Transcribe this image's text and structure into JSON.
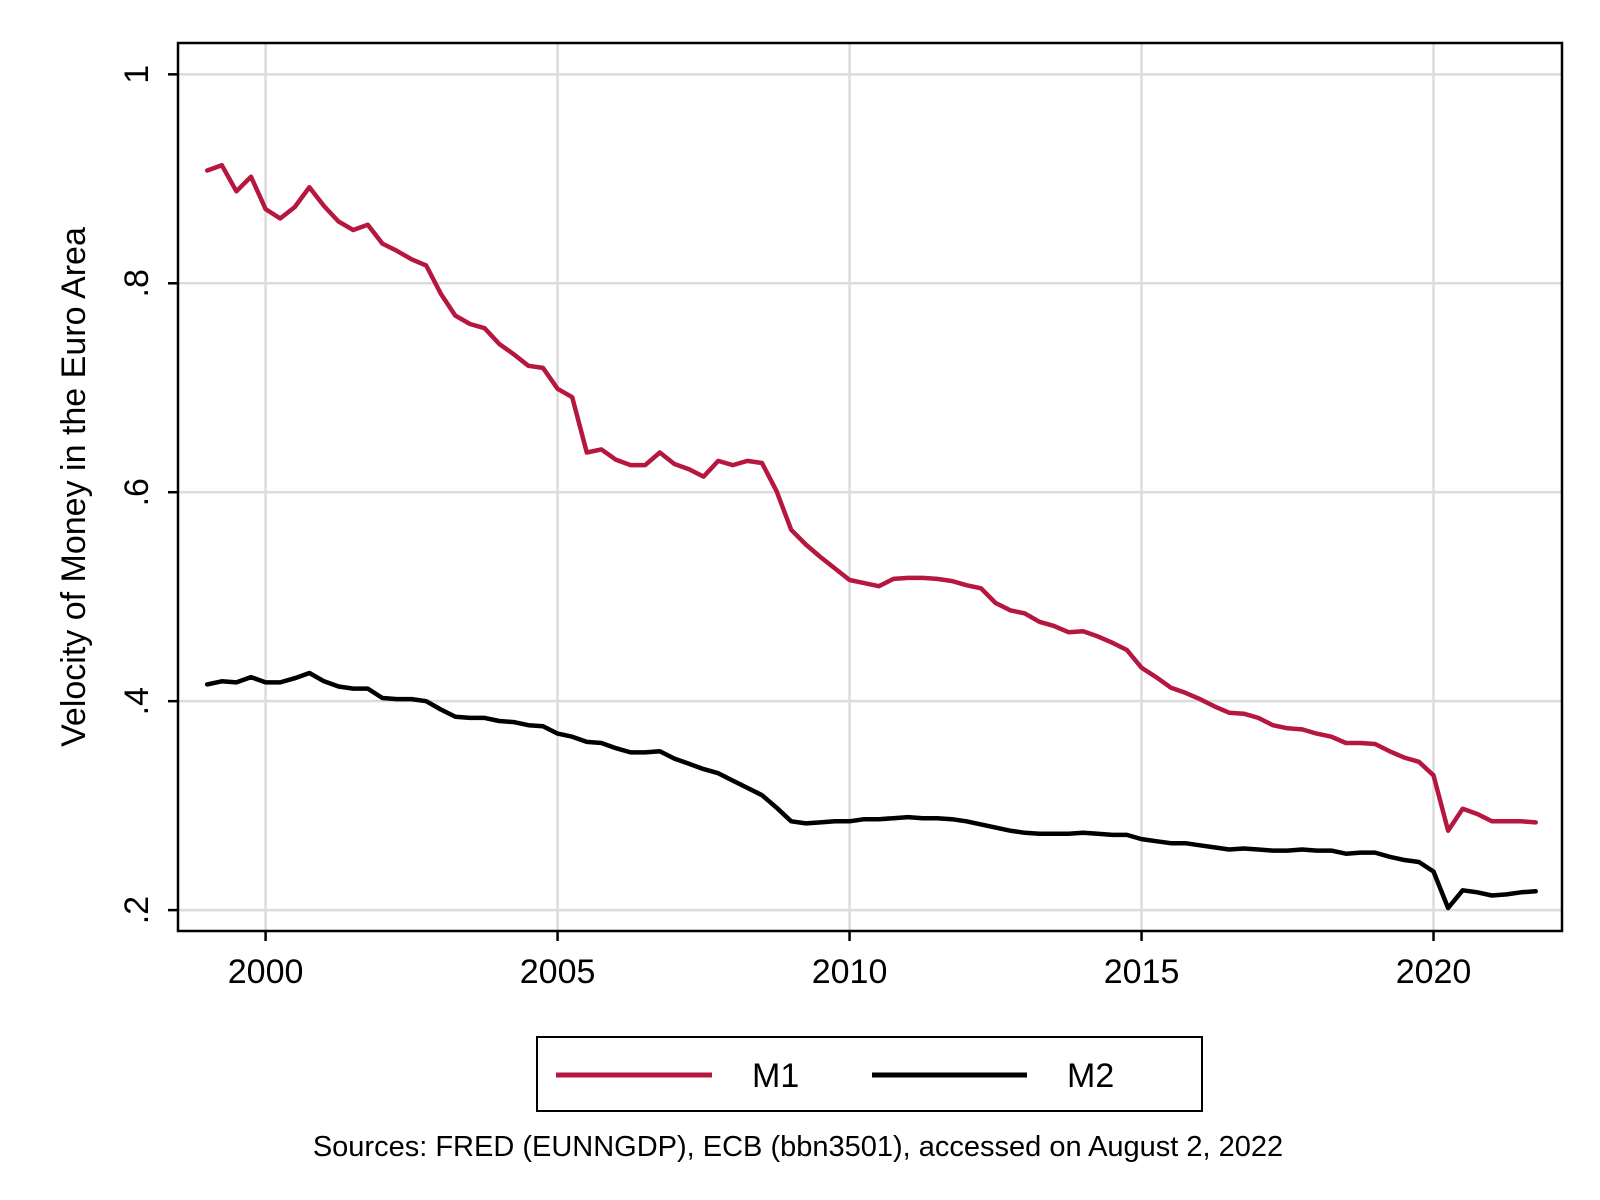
{
  "chart_data": {
    "type": "line",
    "title": "",
    "xlabel": "",
    "ylabel": "Velocity of Money in the Euro Area",
    "xlim": [
      1998.5,
      2022.2
    ],
    "ylim": [
      0.18,
      1.03
    ],
    "xticks": [
      {
        "value": 2000,
        "label": "2000"
      },
      {
        "value": 2005,
        "label": "2005"
      },
      {
        "value": 2010,
        "label": "2010"
      },
      {
        "value": 2015,
        "label": "2015"
      },
      {
        "value": 2020,
        "label": "2020"
      }
    ],
    "yticks": [
      {
        "value": 0.2,
        "label": ".2"
      },
      {
        "value": 0.4,
        "label": ".4"
      },
      {
        "value": 0.6,
        "label": ".6"
      },
      {
        "value": 0.8,
        "label": ".8"
      },
      {
        "value": 1.0,
        "label": "1"
      }
    ],
    "grid": true,
    "legend_position": "bottom",
    "note": "Sources: FRED (EUNNGDP), ECB (bbn3501), accessed on August 2, 2022",
    "x": [
      1999.0,
      1999.25,
      1999.5,
      1999.75,
      2000.0,
      2000.25,
      2000.5,
      2000.75,
      2001.0,
      2001.25,
      2001.5,
      2001.75,
      2002.0,
      2002.25,
      2002.5,
      2002.75,
      2003.0,
      2003.25,
      2003.5,
      2003.75,
      2004.0,
      2004.25,
      2004.5,
      2004.75,
      2005.0,
      2005.25,
      2005.5,
      2005.75,
      2006.0,
      2006.25,
      2006.5,
      2006.75,
      2007.0,
      2007.25,
      2007.5,
      2007.75,
      2008.0,
      2008.25,
      2008.5,
      2008.75,
      2009.0,
      2009.25,
      2009.5,
      2009.75,
      2010.0,
      2010.25,
      2010.5,
      2010.75,
      2011.0,
      2011.25,
      2011.5,
      2011.75,
      2012.0,
      2012.25,
      2012.5,
      2012.75,
      2013.0,
      2013.25,
      2013.5,
      2013.75,
      2014.0,
      2014.25,
      2014.5,
      2014.75,
      2015.0,
      2015.25,
      2015.5,
      2015.75,
      2016.0,
      2016.25,
      2016.5,
      2016.75,
      2017.0,
      2017.25,
      2017.5,
      2017.75,
      2018.0,
      2018.25,
      2018.5,
      2018.75,
      2019.0,
      2019.25,
      2019.5,
      2019.75,
      2020.0,
      2020.25,
      2020.5,
      2020.75,
      2021.0,
      2021.25,
      2021.5,
      2021.75
    ],
    "series": [
      {
        "name": "M1",
        "color": "#b5173f",
        "values": [
          0.908,
          0.913,
          0.888,
          0.902,
          0.871,
          0.862,
          0.873,
          0.892,
          0.874,
          0.859,
          0.851,
          0.856,
          0.838,
          0.831,
          0.823,
          0.817,
          0.79,
          0.769,
          0.761,
          0.757,
          0.742,
          0.732,
          0.721,
          0.719,
          0.699,
          0.691,
          0.638,
          0.641,
          0.631,
          0.626,
          0.626,
          0.638,
          0.627,
          0.622,
          0.615,
          0.63,
          0.626,
          0.63,
          0.628,
          0.601,
          0.564,
          0.55,
          0.538,
          0.527,
          0.516,
          0.513,
          0.51,
          0.517,
          0.518,
          0.518,
          0.517,
          0.515,
          0.511,
          0.508,
          0.494,
          0.487,
          0.484,
          0.476,
          0.472,
          0.466,
          0.467,
          0.462,
          0.456,
          0.449,
          0.432,
          0.423,
          0.413,
          0.408,
          0.402,
          0.395,
          0.389,
          0.388,
          0.384,
          0.377,
          0.374,
          0.373,
          0.369,
          0.366,
          0.36,
          0.36,
          0.359,
          0.352,
          0.346,
          0.342,
          0.329,
          0.276,
          0.297,
          0.292,
          0.285,
          0.285,
          0.285,
          0.284
        ]
      },
      {
        "name": "M2",
        "color": "#000000",
        "values": [
          0.416,
          0.419,
          0.418,
          0.423,
          0.418,
          0.418,
          0.422,
          0.427,
          0.419,
          0.414,
          0.412,
          0.412,
          0.403,
          0.402,
          0.402,
          0.4,
          0.392,
          0.385,
          0.384,
          0.384,
          0.381,
          0.38,
          0.377,
          0.376,
          0.369,
          0.366,
          0.361,
          0.36,
          0.355,
          0.351,
          0.351,
          0.352,
          0.345,
          0.34,
          0.335,
          0.331,
          0.324,
          0.317,
          0.31,
          0.298,
          0.285,
          0.283,
          0.284,
          0.285,
          0.285,
          0.287,
          0.287,
          0.288,
          0.289,
          0.288,
          0.288,
          0.287,
          0.285,
          0.282,
          0.279,
          0.276,
          0.274,
          0.273,
          0.273,
          0.273,
          0.274,
          0.273,
          0.272,
          0.272,
          0.268,
          0.266,
          0.264,
          0.264,
          0.262,
          0.26,
          0.258,
          0.259,
          0.258,
          0.257,
          0.257,
          0.258,
          0.257,
          0.257,
          0.254,
          0.255,
          0.255,
          0.251,
          0.248,
          0.246,
          0.237,
          0.202,
          0.219,
          0.217,
          0.214,
          0.215,
          0.217,
          0.218
        ]
      }
    ]
  }
}
